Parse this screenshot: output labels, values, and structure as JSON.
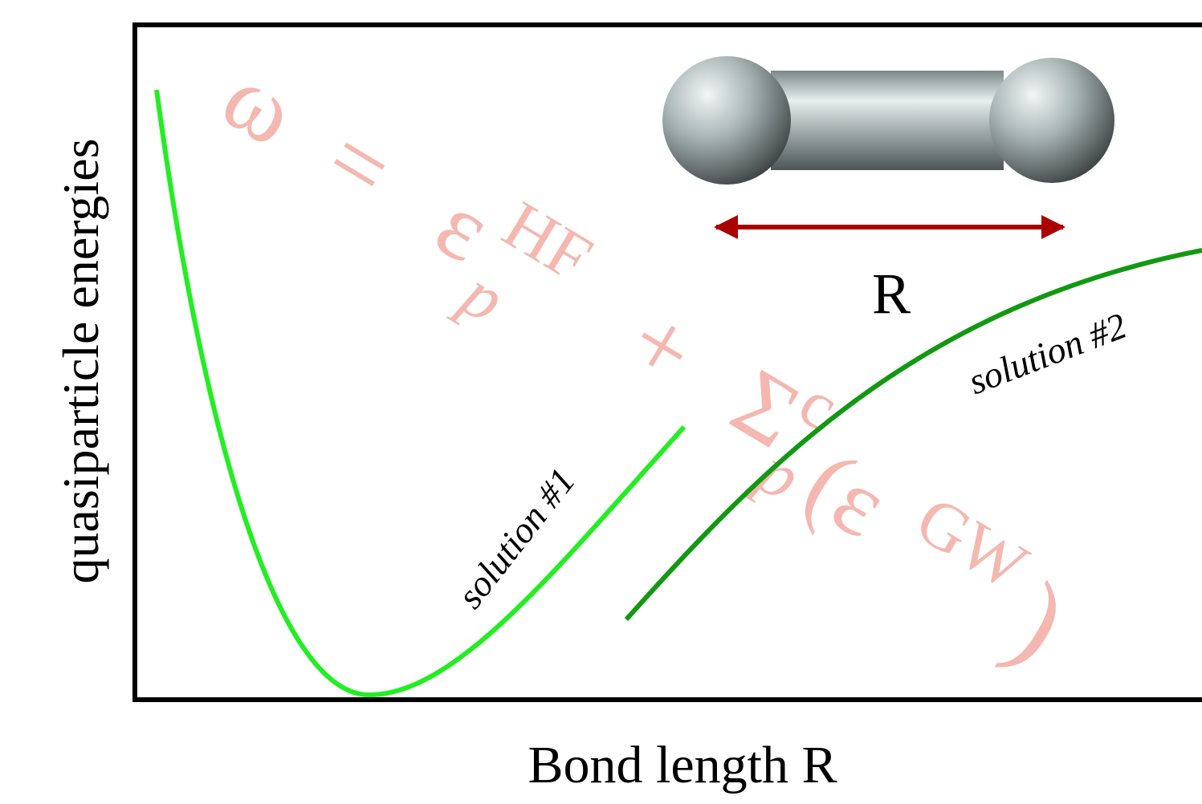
{
  "axes": {
    "x_label": "Bond length R",
    "y_label": "quasiparticle energies"
  },
  "annotations": {
    "solution_1": "solution #1",
    "solution_2": "solution #2",
    "bond_label": "R"
  },
  "equation": {
    "lhs": "ω",
    "equals": "=",
    "eps": "ε",
    "eps_sup": "HF",
    "eps_sub": "p",
    "plus": "+",
    "sigma": "Σ",
    "sigma_sup": "c",
    "sigma_sub": "p",
    "open": "(ε",
    "gw": "GW",
    "close": ")"
  }
}
